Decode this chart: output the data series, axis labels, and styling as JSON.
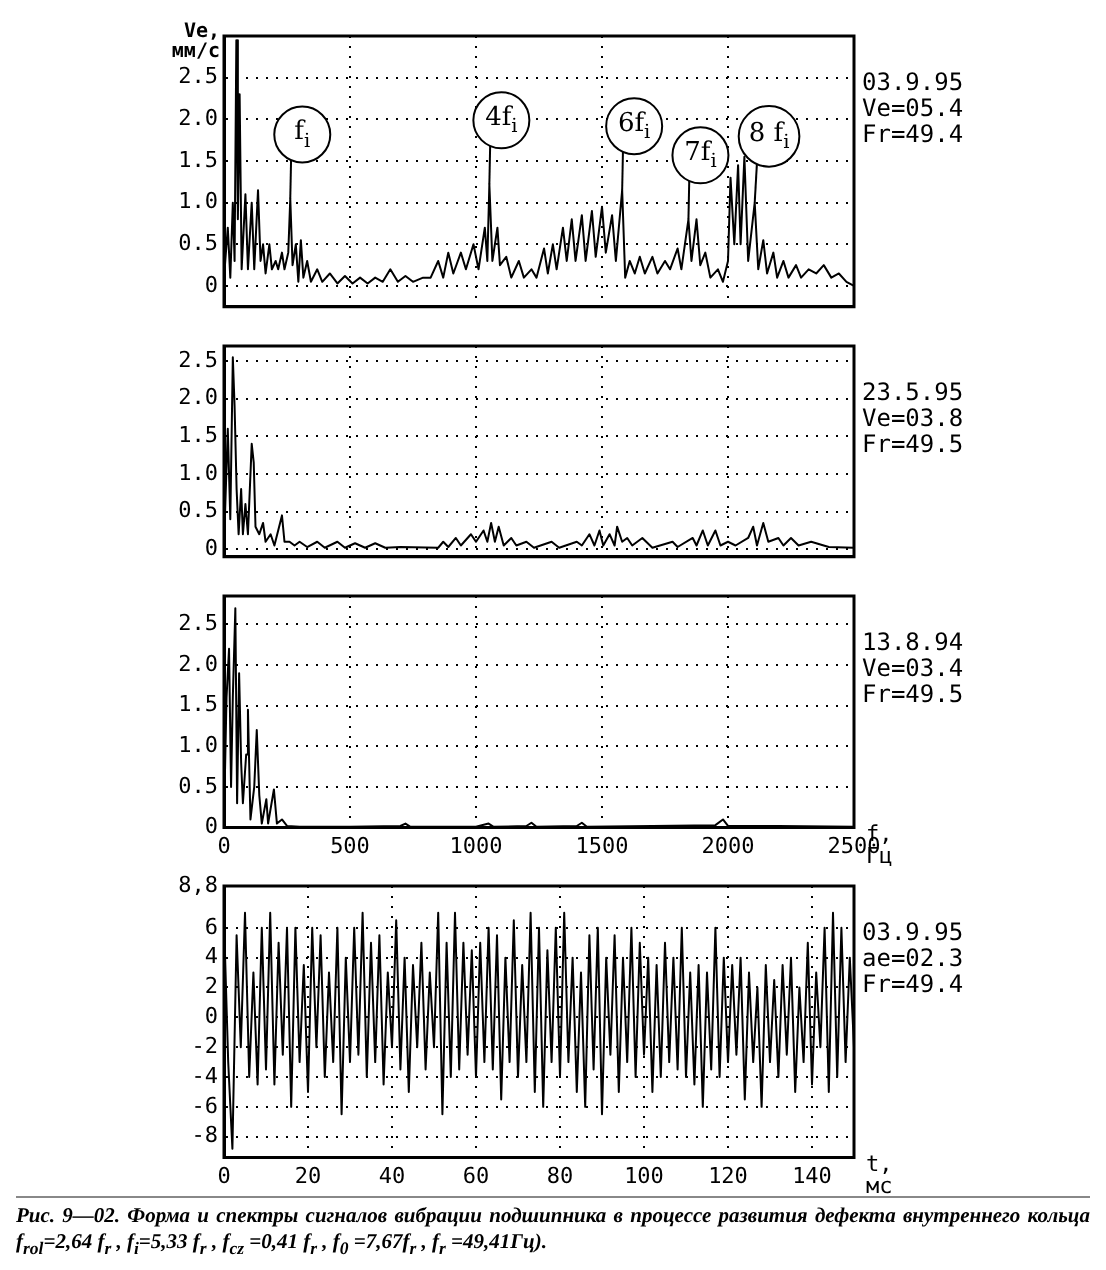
{
  "chart_data": [
    {
      "type": "line",
      "ylabel": "Ve, мм/с",
      "color": "#000000",
      "marker": "none",
      "grid": true,
      "tick_labels": "y",
      "xlim": [
        0,
        2500
      ],
      "xticks": [
        0,
        500,
        1000,
        1500,
        2000,
        2500
      ],
      "ylim": [
        -0.25,
        3.0
      ],
      "yticks": [
        0,
        0.5,
        {
          "value": 1,
          "label": "1.0"
        },
        1.5,
        {
          "value": 2,
          "label": "2.0"
        },
        2.5
      ],
      "x": [
        0,
        15,
        25,
        35,
        42,
        49,
        55,
        62,
        70,
        85,
        95,
        110,
        120,
        135,
        145,
        155,
        165,
        180,
        190,
        205,
        215,
        230,
        240,
        255,
        263,
        272,
        285,
        295,
        305,
        315,
        330,
        345,
        370,
        390,
        420,
        450,
        480,
        510,
        540,
        570,
        600,
        630,
        660,
        690,
        720,
        750,
        790,
        820,
        850,
        870,
        890,
        910,
        940,
        960,
        990,
        1010,
        1035,
        1045,
        1053,
        1065,
        1085,
        1095,
        1120,
        1140,
        1170,
        1190,
        1220,
        1240,
        1270,
        1285,
        1305,
        1320,
        1345,
        1360,
        1380,
        1395,
        1420,
        1435,
        1460,
        1475,
        1500,
        1515,
        1540,
        1555,
        1580,
        1592,
        1610,
        1630,
        1650,
        1670,
        1700,
        1720,
        1750,
        1770,
        1800,
        1815,
        1843,
        1855,
        1875,
        1890,
        1910,
        1930,
        1960,
        1980,
        2000,
        2010,
        2025,
        2040,
        2050,
        2065,
        2080,
        2106,
        2120,
        2140,
        2155,
        2180,
        2195,
        2220,
        2240,
        2270,
        2290,
        2320,
        2350,
        2380,
        2410,
        2440,
        2470,
        2500
      ],
      "values": [
        0.1,
        0.7,
        0.1,
        1.0,
        0.3,
        2.95,
        0.8,
        2.3,
        0.2,
        1.1,
        0.2,
        1.0,
        0.2,
        1.15,
        0.3,
        0.5,
        0.15,
        0.5,
        0.2,
        0.3,
        0.2,
        0.4,
        0.2,
        0.4,
        1.05,
        0.25,
        0.5,
        0.05,
        0.55,
        0.1,
        0.3,
        0.05,
        0.2,
        0.05,
        0.15,
        0.03,
        0.12,
        0.03,
        0.1,
        0.03,
        0.1,
        0.05,
        0.2,
        0.05,
        0.12,
        0.05,
        0.1,
        0.1,
        0.3,
        0.1,
        0.4,
        0.15,
        0.4,
        0.2,
        0.5,
        0.2,
        0.7,
        0.3,
        1.22,
        0.3,
        0.7,
        0.25,
        0.35,
        0.1,
        0.3,
        0.1,
        0.2,
        0.1,
        0.45,
        0.15,
        0.5,
        0.2,
        0.7,
        0.3,
        0.8,
        0.3,
        0.85,
        0.3,
        0.9,
        0.35,
        0.95,
        0.4,
        0.85,
        0.3,
        1.15,
        0.1,
        0.3,
        0.15,
        0.35,
        0.15,
        0.35,
        0.15,
        0.3,
        0.2,
        0.45,
        0.2,
        0.8,
        0.3,
        0.8,
        0.25,
        0.4,
        0.1,
        0.2,
        0.05,
        0.3,
        1.3,
        0.5,
        1.45,
        0.5,
        1.55,
        0.3,
        1.0,
        0.2,
        0.55,
        0.15,
        0.4,
        0.1,
        0.3,
        0.1,
        0.25,
        0.1,
        0.2,
        0.15,
        0.25,
        0.1,
        0.15,
        0.05,
        0.0
      ],
      "annotations": [
        "03.9.95",
        "Ve=05.4",
        "Fr=49.4",
        {
          "text": "f$_{i}$",
          "x": 263,
          "y": 1.05
        },
        {
          "text": "4f$_{i}$",
          "x": 1053,
          "y": 1.22
        },
        {
          "text": "6f$_{i}$",
          "x": 1580,
          "y": 1.15
        },
        {
          "text": "7f$_{i}$",
          "x": 1843,
          "y": 0.8
        },
        {
          "text": "8 f$_{i}$",
          "x": 2106,
          "y": 1.0
        }
      ]
    },
    {
      "type": "line",
      "color": "#000000",
      "marker": "none",
      "grid": true,
      "tick_labels": "y",
      "xlim": [
        0,
        2500
      ],
      "xticks": [
        0,
        500,
        1000,
        1500,
        2000,
        2500
      ],
      "ylim": [
        -0.1,
        2.7
      ],
      "yticks": [
        0,
        0.5,
        {
          "value": 1,
          "label": "1.0"
        },
        1.5,
        {
          "value": 2,
          "label": "2.0"
        },
        2.5
      ],
      "x": [
        0,
        15,
        25,
        35,
        42,
        50,
        58,
        68,
        75,
        85,
        95,
        110,
        118,
        125,
        140,
        155,
        165,
        185,
        200,
        230,
        240,
        260,
        280,
        300,
        330,
        370,
        400,
        450,
        480,
        520,
        560,
        600,
        640,
        700,
        850,
        870,
        890,
        920,
        940,
        980,
        1000,
        1030,
        1045,
        1060,
        1075,
        1090,
        1110,
        1140,
        1160,
        1200,
        1230,
        1300,
        1330,
        1400,
        1420,
        1450,
        1470,
        1490,
        1505,
        1530,
        1550,
        1560,
        1580,
        1600,
        1620,
        1660,
        1700,
        1780,
        1800,
        1860,
        1875,
        1900,
        1920,
        1950,
        1970,
        2000,
        2030,
        2080,
        2100,
        2115,
        2140,
        2160,
        2200,
        2220,
        2250,
        2280,
        2330,
        2400,
        2500
      ],
      "values": [
        0.05,
        1.6,
        0.4,
        2.55,
        1.9,
        0.8,
        0.2,
        0.8,
        0.2,
        0.6,
        0.2,
        1.4,
        1.15,
        0.3,
        0.2,
        0.35,
        0.1,
        0.2,
        0.05,
        0.45,
        0.1,
        0.1,
        0.05,
        0.1,
        0.03,
        0.1,
        0.02,
        0.1,
        0.02,
        0.08,
        0.02,
        0.08,
        0.02,
        0.03,
        0.02,
        0.1,
        0.03,
        0.15,
        0.05,
        0.2,
        0.1,
        0.25,
        0.1,
        0.35,
        0.1,
        0.3,
        0.05,
        0.15,
        0.05,
        0.1,
        0.02,
        0.1,
        0.02,
        0.1,
        0.05,
        0.2,
        0.05,
        0.25,
        0.05,
        0.2,
        0.05,
        0.3,
        0.1,
        0.15,
        0.05,
        0.15,
        0.02,
        0.1,
        0.03,
        0.15,
        0.05,
        0.25,
        0.05,
        0.25,
        0.05,
        0.1,
        0.05,
        0.15,
        0.3,
        0.05,
        0.35,
        0.1,
        0.15,
        0.05,
        0.15,
        0.05,
        0.1,
        0.03,
        0.02
      ],
      "annotations": [
        "23.5.95",
        "Ve=03.8",
        "Fr=49.5"
      ]
    },
    {
      "type": "line",
      "xlabel": "f, Гц",
      "color": "#000000",
      "marker": "none",
      "grid": true,
      "xlim": [
        0,
        2500
      ],
      "xticks": [
        0,
        500,
        1000,
        1500,
        2000,
        2500
      ],
      "ylim": [
        0,
        2.85
      ],
      "yticks": [
        0,
        0.5,
        {
          "value": 1,
          "label": "1.0"
        },
        1.5,
        {
          "value": 2,
          "label": "2.0"
        },
        2.5
      ],
      "x": [
        0,
        10,
        20,
        28,
        35,
        45,
        52,
        60,
        68,
        75,
        88,
        95,
        105,
        120,
        130,
        140,
        150,
        168,
        175,
        198,
        210,
        230,
        250,
        300,
        500,
        700,
        720,
        740,
        1000,
        1050,
        1070,
        1200,
        1220,
        1240,
        1400,
        1420,
        1440,
        1700,
        1950,
        1980,
        2000,
        2200,
        2500
      ],
      "values": [
        0.1,
        1.6,
        2.2,
        0.5,
        1.6,
        2.7,
        0.3,
        1.9,
        0.8,
        0.3,
        0.9,
        1.45,
        0.1,
        0.5,
        1.2,
        0.4,
        0.05,
        0.35,
        0.05,
        0.47,
        0.05,
        0.1,
        0.02,
        0.01,
        0.01,
        0.02,
        0.05,
        0.01,
        0.01,
        0.05,
        0.01,
        0.02,
        0.06,
        0.01,
        0.02,
        0.06,
        0.01,
        0.02,
        0.03,
        0.1,
        0.02,
        0.02,
        0.01
      ],
      "annotations": [
        "13.8.94",
        "Ve=03.4",
        "Fr=49.5"
      ]
    },
    {
      "type": "line",
      "xlabel": "t, мс",
      "color": "#000000",
      "marker": "none",
      "grid": true,
      "xlim": [
        0,
        150
      ],
      "xticks": [
        0,
        20,
        40,
        60,
        80,
        100,
        120,
        140
      ],
      "ylim": [
        -9.4,
        8.8
      ],
      "yticks": [
        -8,
        -6,
        -4,
        -2,
        0,
        2,
        4,
        6,
        {
          "value": 8.8,
          "label": "8,8"
        }
      ],
      "x": [
        0,
        1,
        2,
        3,
        4,
        5,
        6,
        7,
        8,
        9,
        10,
        11,
        12,
        13,
        14,
        15,
        16,
        17,
        18,
        19,
        20,
        21,
        22,
        23,
        24,
        25,
        26,
        27,
        28,
        29,
        30,
        31,
        32,
        33,
        34,
        35,
        36,
        37,
        38,
        39,
        40,
        41,
        42,
        43,
        44,
        45,
        46,
        47,
        48,
        49,
        50,
        51,
        52,
        53,
        54,
        55,
        56,
        57,
        58,
        59,
        60,
        61,
        62,
        63,
        64,
        65,
        66,
        67,
        68,
        69,
        70,
        71,
        72,
        73,
        74,
        75,
        76,
        77,
        78,
        79,
        80,
        81,
        82,
        83,
        84,
        85,
        86,
        87,
        88,
        89,
        90,
        91,
        92,
        93,
        94,
        95,
        96,
        97,
        98,
        99,
        100,
        101,
        102,
        103,
        104,
        105,
        106,
        107,
        108,
        109,
        110,
        111,
        112,
        113,
        114,
        115,
        116,
        117,
        118,
        119,
        120,
        121,
        122,
        123,
        124,
        125,
        126,
        127,
        128,
        129,
        130,
        131,
        132,
        133,
        134,
        135,
        136,
        137,
        138,
        139,
        140,
        141,
        142,
        143,
        144,
        145,
        146,
        147,
        148,
        149,
        150
      ],
      "values": [
        6.5,
        -3,
        -8.8,
        5.5,
        -2,
        7,
        -4,
        3,
        -4.5,
        6,
        -3.5,
        7,
        -4.5,
        5,
        -2.5,
        6,
        -6,
        6,
        -3,
        3.5,
        -5,
        6,
        -2,
        5.5,
        -4,
        3,
        -3,
        6,
        -6.5,
        4,
        -3,
        6,
        -2.5,
        7,
        -4,
        5,
        -3,
        5.5,
        -4.5,
        3,
        -2,
        6.5,
        -3.5,
        4,
        -5,
        3.5,
        -2,
        5,
        -3.5,
        3,
        -2,
        7,
        -6.5,
        5,
        -4,
        7,
        -3.5,
        5,
        -2.5,
        4.5,
        -4,
        5,
        -3,
        6,
        -3.5,
        5.5,
        -5.5,
        4,
        -3,
        6.5,
        -4,
        3.5,
        -3,
        7,
        -5,
        6,
        -6,
        4.5,
        -3,
        6,
        -4,
        7,
        -3,
        4,
        -5,
        3,
        -6,
        5.5,
        -3.5,
        6,
        -6.5,
        4,
        -2.5,
        5.5,
        -5,
        4,
        -3,
        6,
        -4,
        5,
        -2.5,
        4,
        -5,
        3.5,
        -4,
        5,
        -3,
        4,
        -3.5,
        6,
        -4,
        3,
        -4.5,
        3.5,
        -6,
        3,
        -3.5,
        6,
        -4,
        4,
        -3,
        3.5,
        -2.5,
        4,
        -5.5,
        3,
        -3,
        2,
        -6,
        3.5,
        -3,
        2.5,
        -4,
        3.5,
        -2.5,
        4,
        -5,
        2,
        -3,
        5,
        -4.5,
        3,
        -2,
        6,
        -5,
        7,
        -4,
        6,
        -3,
        4,
        -2
      ],
      "annotations": [
        "03.9.95",
        "ae=02.3",
        "Fr=49.4"
      ]
    },
    {
      "type": "other",
      "annotations": [
        "Рис. 9—02. Форма и спектры сигналов вибрации подшипника в процессе развития дефекта внутреннего кольца f$_{rol}$=2,64 f$_{r}$ , f$_{i}$=5,33 f$_{r}$ , f$_{cz}$ =0,41 f$_{r}$ , f$_{0}$ =7,67f$_{r}$ , f$_{r}$ =49,41Гц)."
      ]
    }
  ]
}
